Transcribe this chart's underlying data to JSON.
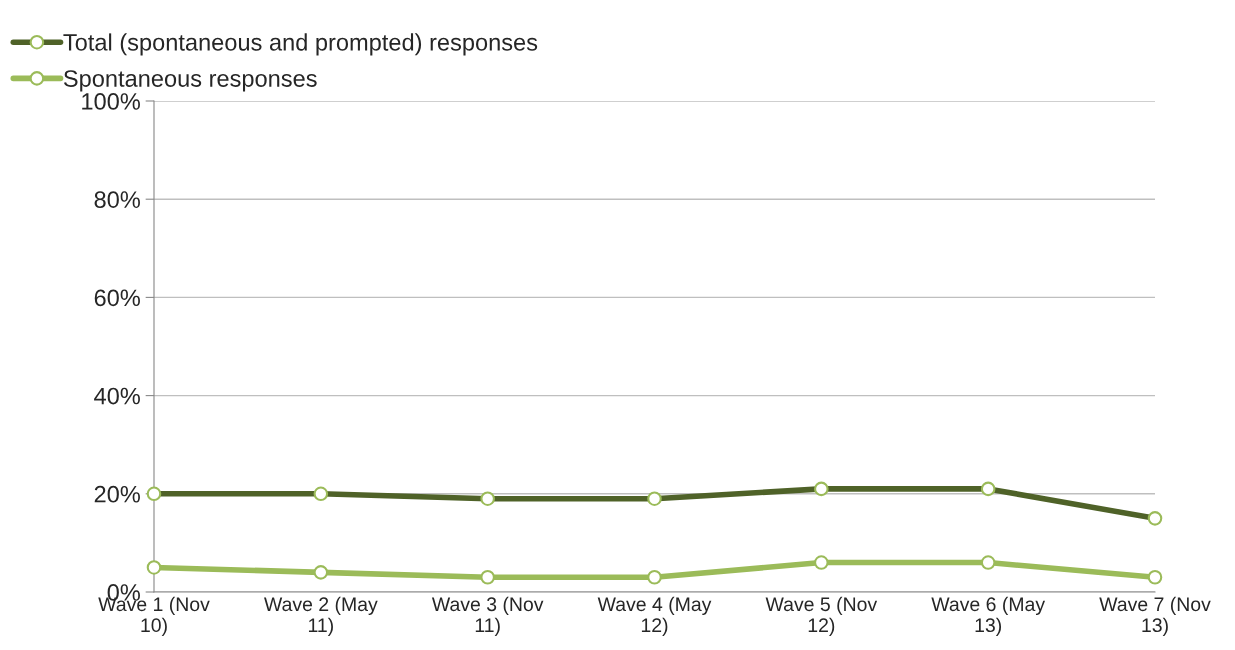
{
  "chart_data": {
    "type": "line",
    "categories": [
      "Wave 1 (Nov\n10)",
      "Wave 2 (May\n11)",
      "Wave 3 (Nov\n11)",
      "Wave 4 (May\n12)",
      "Wave 5 (Nov\n12)",
      "Wave 6 (May\n13)",
      "Wave 7 (Nov\n13)"
    ],
    "series": [
      {
        "name": "Total (spontaneous and prompted) responses",
        "color": "#4f6228",
        "values": [
          20,
          20,
          19,
          19,
          21,
          21,
          15
        ]
      },
      {
        "name": "Spontaneous responses",
        "color": "#9bbb59",
        "values": [
          5,
          4,
          3,
          3,
          6,
          6,
          3
        ]
      }
    ],
    "ylim": [
      0,
      100
    ],
    "yticks": [
      {
        "value": 0,
        "label": "0%"
      },
      {
        "value": 20,
        "label": "20%"
      },
      {
        "value": 40,
        "label": "40%"
      },
      {
        "value": 60,
        "label": "60%"
      },
      {
        "value": 80,
        "label": "80%"
      },
      {
        "value": 100,
        "label": "100%"
      }
    ],
    "grid": "y",
    "legend": "top left",
    "marker": "circle",
    "line_style": "solid"
  }
}
